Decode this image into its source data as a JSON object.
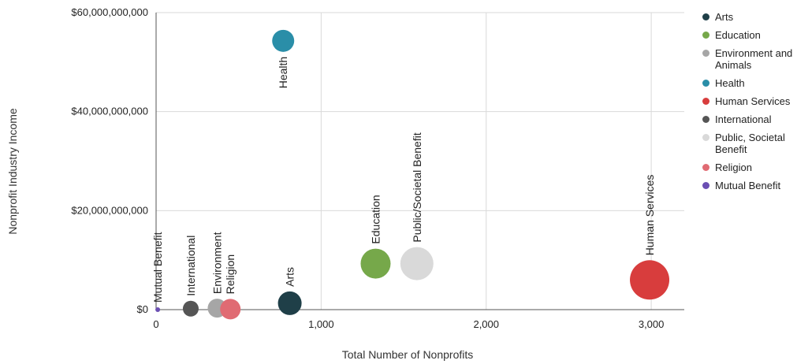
{
  "chart_data": {
    "type": "scatter",
    "xlabel": "Total Number of Nonprofits",
    "ylabel": "Nonprofit Industry Income",
    "xlim": [
      0,
      3200
    ],
    "ylim": [
      0,
      60000000000
    ],
    "x_ticks": [
      0,
      1000,
      2000,
      3000
    ],
    "x_tick_labels": [
      "0",
      "1,000",
      "2,000",
      "3,000"
    ],
    "y_ticks": [
      0,
      20000000000,
      40000000000,
      60000000000
    ],
    "y_tick_labels": [
      "$0",
      "$20,000,000,000",
      "$40,000,000,000",
      "$60,000,000,000"
    ],
    "grid": true,
    "legend_position": "right",
    "series": [
      {
        "name": "Arts",
        "label": "Arts",
        "color": "#1f3f48",
        "x": 810,
        "y": 1300000000,
        "size": 15
      },
      {
        "name": "Education",
        "label": "Education",
        "color": "#76a84a",
        "x": 1330,
        "y": 9300000000,
        "size": 19
      },
      {
        "name": "Environment and Animals",
        "label": "Environment",
        "color": "#a6a6a6",
        "x": 370,
        "y": 300000000,
        "size": 12
      },
      {
        "name": "Health",
        "label": "Health",
        "color": "#2a8ea8",
        "x": 770,
        "y": 54300000000,
        "size": 14
      },
      {
        "name": "Human Services",
        "label": "Human Services",
        "color": "#d83d3d",
        "x": 2990,
        "y": 6000000000,
        "size": 25
      },
      {
        "name": "International",
        "label": "International",
        "color": "#555555",
        "x": 210,
        "y": 200000000,
        "size": 10
      },
      {
        "name": "Public, Societal Benefit",
        "label": "Public/Societal Benefit",
        "color": "#d9d9d9",
        "x": 1580,
        "y": 9300000000,
        "size": 21
      },
      {
        "name": "Religion",
        "label": "Religion",
        "color": "#e06b73",
        "x": 450,
        "y": 100000000,
        "size": 13
      },
      {
        "name": "Mutual Benefit",
        "label": "Mutual Benefit",
        "color": "#6b4fb3",
        "x": 10,
        "y": 0,
        "size": 3
      }
    ]
  },
  "legend": [
    {
      "label": "Arts",
      "color": "#1f3f48"
    },
    {
      "label": "Education",
      "color": "#76a84a"
    },
    {
      "label": "Environment and Animals",
      "color": "#a6a6a6"
    },
    {
      "label": "Health",
      "color": "#2a8ea8"
    },
    {
      "label": "Human Services",
      "color": "#d83d3d"
    },
    {
      "label": "International",
      "color": "#555555"
    },
    {
      "label": "Public, Societal Benefit",
      "color": "#d9d9d9"
    },
    {
      "label": "Religion",
      "color": "#e06b73"
    },
    {
      "label": "Mutual Benefit",
      "color": "#6b4fb3"
    }
  ]
}
